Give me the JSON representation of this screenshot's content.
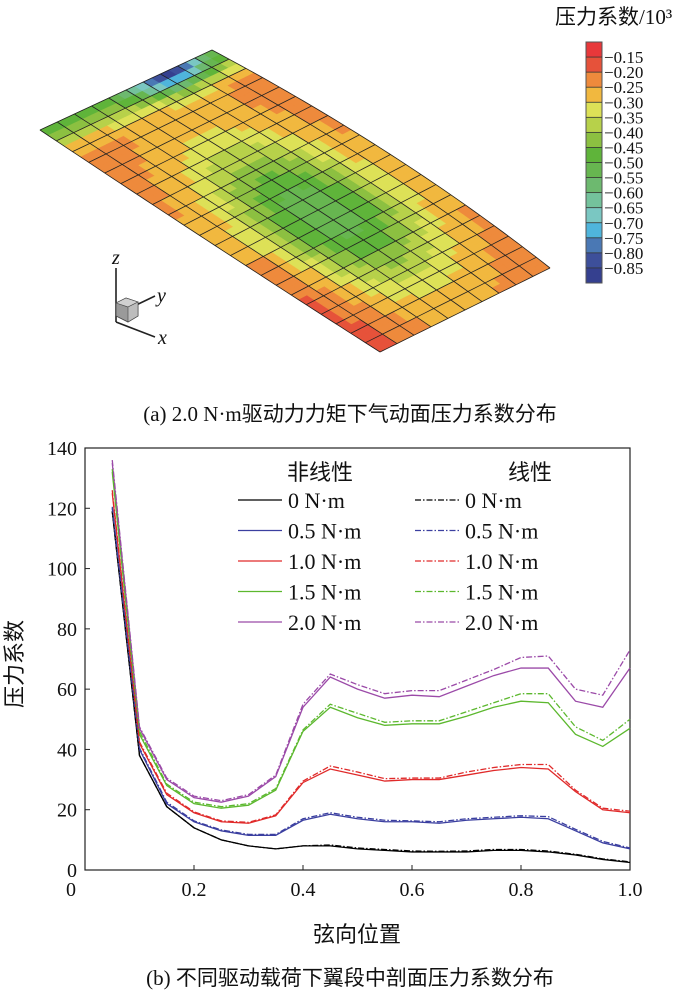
{
  "panel_a": {
    "caption": "(a) 2.0 N·m驱动力力矩下气动面压力系数分布",
    "colorbar_title": "压力系数/10³",
    "colorbar_labels": [
      "−0.15",
      "−0.20",
      "−0.25",
      "−0.30",
      "−0.35",
      "−0.40",
      "−0.45",
      "−0.50",
      "−0.55",
      "−0.60",
      "−0.65",
      "−0.70",
      "−0.75",
      "−0.80",
      "−0.85"
    ],
    "colorbar_colors": [
      "#e8383a",
      "#e6523a",
      "#ee8a3c",
      "#f1b83f",
      "#dde157",
      "#b7d14a",
      "#8cc041",
      "#5fb43a",
      "#67b650",
      "#6db96f",
      "#74c29c",
      "#7ac7c2",
      "#4fb5dc",
      "#4a78b4",
      "#3d4f9a",
      "#35408f"
    ],
    "axes": {
      "z": "z",
      "y": "y",
      "x": "x"
    }
  },
  "panel_b": {
    "caption": "(b) 不同驱动载荷下翼段中剖面压力系数分布"
  },
  "chart_data": {
    "type": "line",
    "xlabel": "弦向位置",
    "ylabel": "压力系数",
    "xlim": [
      0,
      1.0
    ],
    "ylim": [
      0,
      140
    ],
    "xticks": [
      "0",
      "0.2",
      "0.4",
      "0.6",
      "0.8",
      "1.0"
    ],
    "yticks": [
      "0",
      "20",
      "40",
      "60",
      "80",
      "100",
      "120",
      "140"
    ],
    "legend_headers": {
      "nonlinear": "非线性",
      "linear": "线性"
    },
    "legend_placement": "top-right",
    "x": [
      0.05,
      0.1,
      0.15,
      0.2,
      0.25,
      0.3,
      0.35,
      0.4,
      0.45,
      0.5,
      0.55,
      0.6,
      0.65,
      0.7,
      0.75,
      0.8,
      0.85,
      0.9,
      0.95,
      1.0
    ],
    "series": [
      {
        "name": "0 N·m",
        "group": "nonlinear",
        "color": "#000000",
        "dash": false,
        "values": [
          119,
          38,
          21,
          14,
          10,
          8,
          7,
          8,
          8,
          7,
          6.5,
          6,
          6,
          6,
          6.5,
          6.5,
          6,
          5,
          3.5,
          2.5
        ]
      },
      {
        "name": "0.5 N·m",
        "group": "nonlinear",
        "color": "#3b3fa0",
        "dash": false,
        "values": [
          120,
          40,
          22,
          16,
          13,
          11.5,
          11.5,
          16.5,
          18.5,
          17,
          16,
          16,
          15.5,
          16.5,
          17,
          17.5,
          17,
          13,
          9,
          7
        ]
      },
      {
        "name": "1.0 N·m",
        "group": "nonlinear",
        "color": "#e02a2a",
        "dash": false,
        "values": [
          125,
          42,
          25,
          19,
          16,
          15.5,
          18,
          29,
          33.5,
          31.5,
          29.5,
          30,
          30,
          31.5,
          33,
          34,
          33.5,
          26,
          20,
          19
        ]
      },
      {
        "name": "1.5 N·m",
        "group": "nonlinear",
        "color": "#5cb82e",
        "dash": false,
        "values": [
          132,
          45,
          28,
          22,
          20.5,
          21.5,
          26.5,
          46,
          54,
          50.5,
          48,
          48.5,
          48.5,
          51,
          54,
          56,
          55.5,
          45,
          41,
          47
        ]
      },
      {
        "name": "2.0 N·m",
        "group": "nonlinear",
        "color": "#9b4aa8",
        "dash": false,
        "values": [
          135,
          47,
          30,
          24,
          22.5,
          24.5,
          31,
          54,
          64,
          60,
          57,
          58,
          57.5,
          61,
          64.5,
          67,
          67,
          56,
          54,
          67
        ]
      },
      {
        "name": "0 N·m",
        "group": "linear",
        "color": "#000000",
        "dash": true,
        "values": [
          119,
          38,
          21,
          14,
          10,
          8,
          7,
          8,
          8.3,
          7.3,
          6.8,
          6.3,
          6.2,
          6.3,
          6.8,
          6.8,
          6.3,
          5.2,
          3.7,
          2.7
        ]
      },
      {
        "name": "0.5 N·m",
        "group": "linear",
        "color": "#3b3fa0",
        "dash": true,
        "values": [
          120.5,
          40.5,
          22.5,
          16.3,
          13.3,
          11.8,
          11.8,
          17,
          19,
          17.5,
          16.5,
          16.3,
          16,
          17,
          17.5,
          18,
          17.7,
          13.5,
          9.5,
          7.3
        ]
      },
      {
        "name": "1.0 N·m",
        "group": "linear",
        "color": "#e02a2a",
        "dash": true,
        "values": [
          126,
          42.5,
          25.5,
          19.3,
          16.3,
          15.8,
          18.3,
          29.5,
          34.5,
          32.5,
          30.3,
          30.5,
          30.5,
          32.5,
          34,
          35,
          35,
          26.5,
          20.5,
          19.5
        ]
      },
      {
        "name": "1.5 N·m",
        "group": "linear",
        "color": "#5cb82e",
        "dash": true,
        "values": [
          133,
          46,
          28.5,
          22.5,
          21,
          22,
          27,
          46.5,
          55,
          52,
          49,
          49.5,
          49.5,
          52.5,
          55.5,
          58.5,
          58.5,
          47.5,
          43,
          50
        ]
      },
      {
        "name": "2.0 N·m",
        "group": "linear",
        "color": "#9b4aa8",
        "dash": true,
        "values": [
          136,
          47.5,
          30.5,
          24.5,
          23,
          25,
          31.5,
          55,
          65,
          61.5,
          58.5,
          59.5,
          59.5,
          63,
          66.5,
          70.5,
          71,
          60,
          58,
          73
        ]
      }
    ]
  }
}
